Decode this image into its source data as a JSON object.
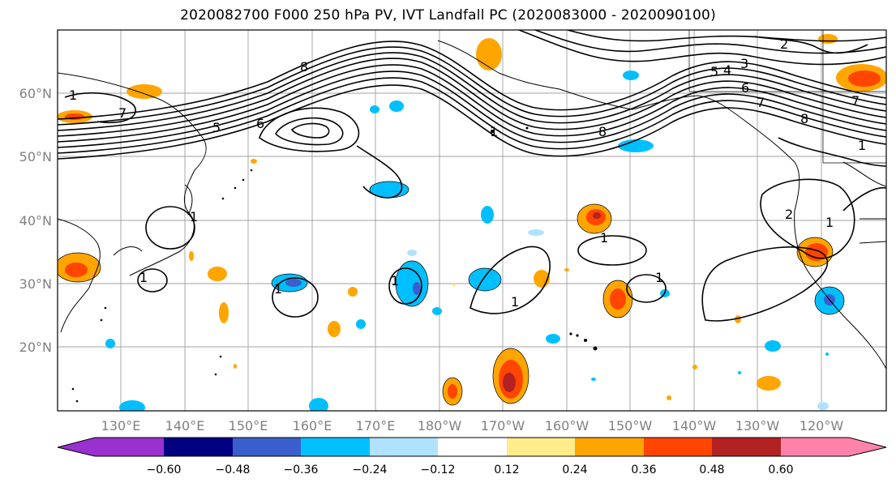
{
  "title": "2020082700 F000 250 hPa PV, IVT Landfall PC (2020083000 - 2020090100)",
  "lat_labels": [
    "60°N",
    "50°N",
    "40°N",
    "30°N",
    "20°N"
  ],
  "lon_labels": [
    "130°E",
    "140°E",
    "150°E",
    "160°E",
    "170°E",
    "180°W",
    "170°W",
    "160°W",
    "150°W",
    "140°W",
    "130°W",
    "120°W"
  ],
  "colorbar": {
    "colors": [
      "#9b30d0",
      "#000080",
      "#3a5fcd",
      "#00bfff",
      "#b0e2ff",
      "#ffffff",
      "#ffec8b",
      "#ffa500",
      "#ff4500",
      "#b22222",
      "#ff82ab"
    ],
    "tick_labels": [
      "−0.60",
      "−0.48",
      "−0.36",
      "−0.24",
      "−0.12",
      "0.12",
      "0.24",
      "0.36",
      "0.48",
      "0.60"
    ]
  },
  "contour_labels": [
    "2",
    "4",
    "5",
    "3",
    "6",
    "7",
    "7",
    "8",
    "1",
    "6",
    "5",
    "7",
    "8",
    "1",
    "1",
    "1",
    "1",
    "1",
    "1",
    "1",
    "1",
    "8",
    "1",
    "2",
    "1"
  ]
}
